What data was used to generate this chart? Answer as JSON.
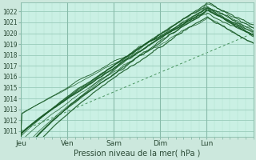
{
  "xlabel": "Pression niveau de la mer( hPa )",
  "background_color": "#cce8dd",
  "plot_bg_color": "#caf0e4",
  "grid_color_major": "#99ccbb",
  "grid_color_minor": "#b0ddd0",
  "line_color": "#1a5c28",
  "dashed_line_color": "#3a8a50",
  "ylim": [
    1010.5,
    1022.8
  ],
  "yticks": [
    1011,
    1012,
    1013,
    1014,
    1015,
    1016,
    1017,
    1018,
    1019,
    1020,
    1021,
    1022
  ],
  "day_labels": [
    "Jeu",
    "Ven",
    "Sam",
    "Dim",
    "Lun"
  ],
  "day_positions": [
    0,
    48,
    96,
    144,
    192
  ],
  "total_hours": 240,
  "num_models": 11,
  "seed": 7
}
